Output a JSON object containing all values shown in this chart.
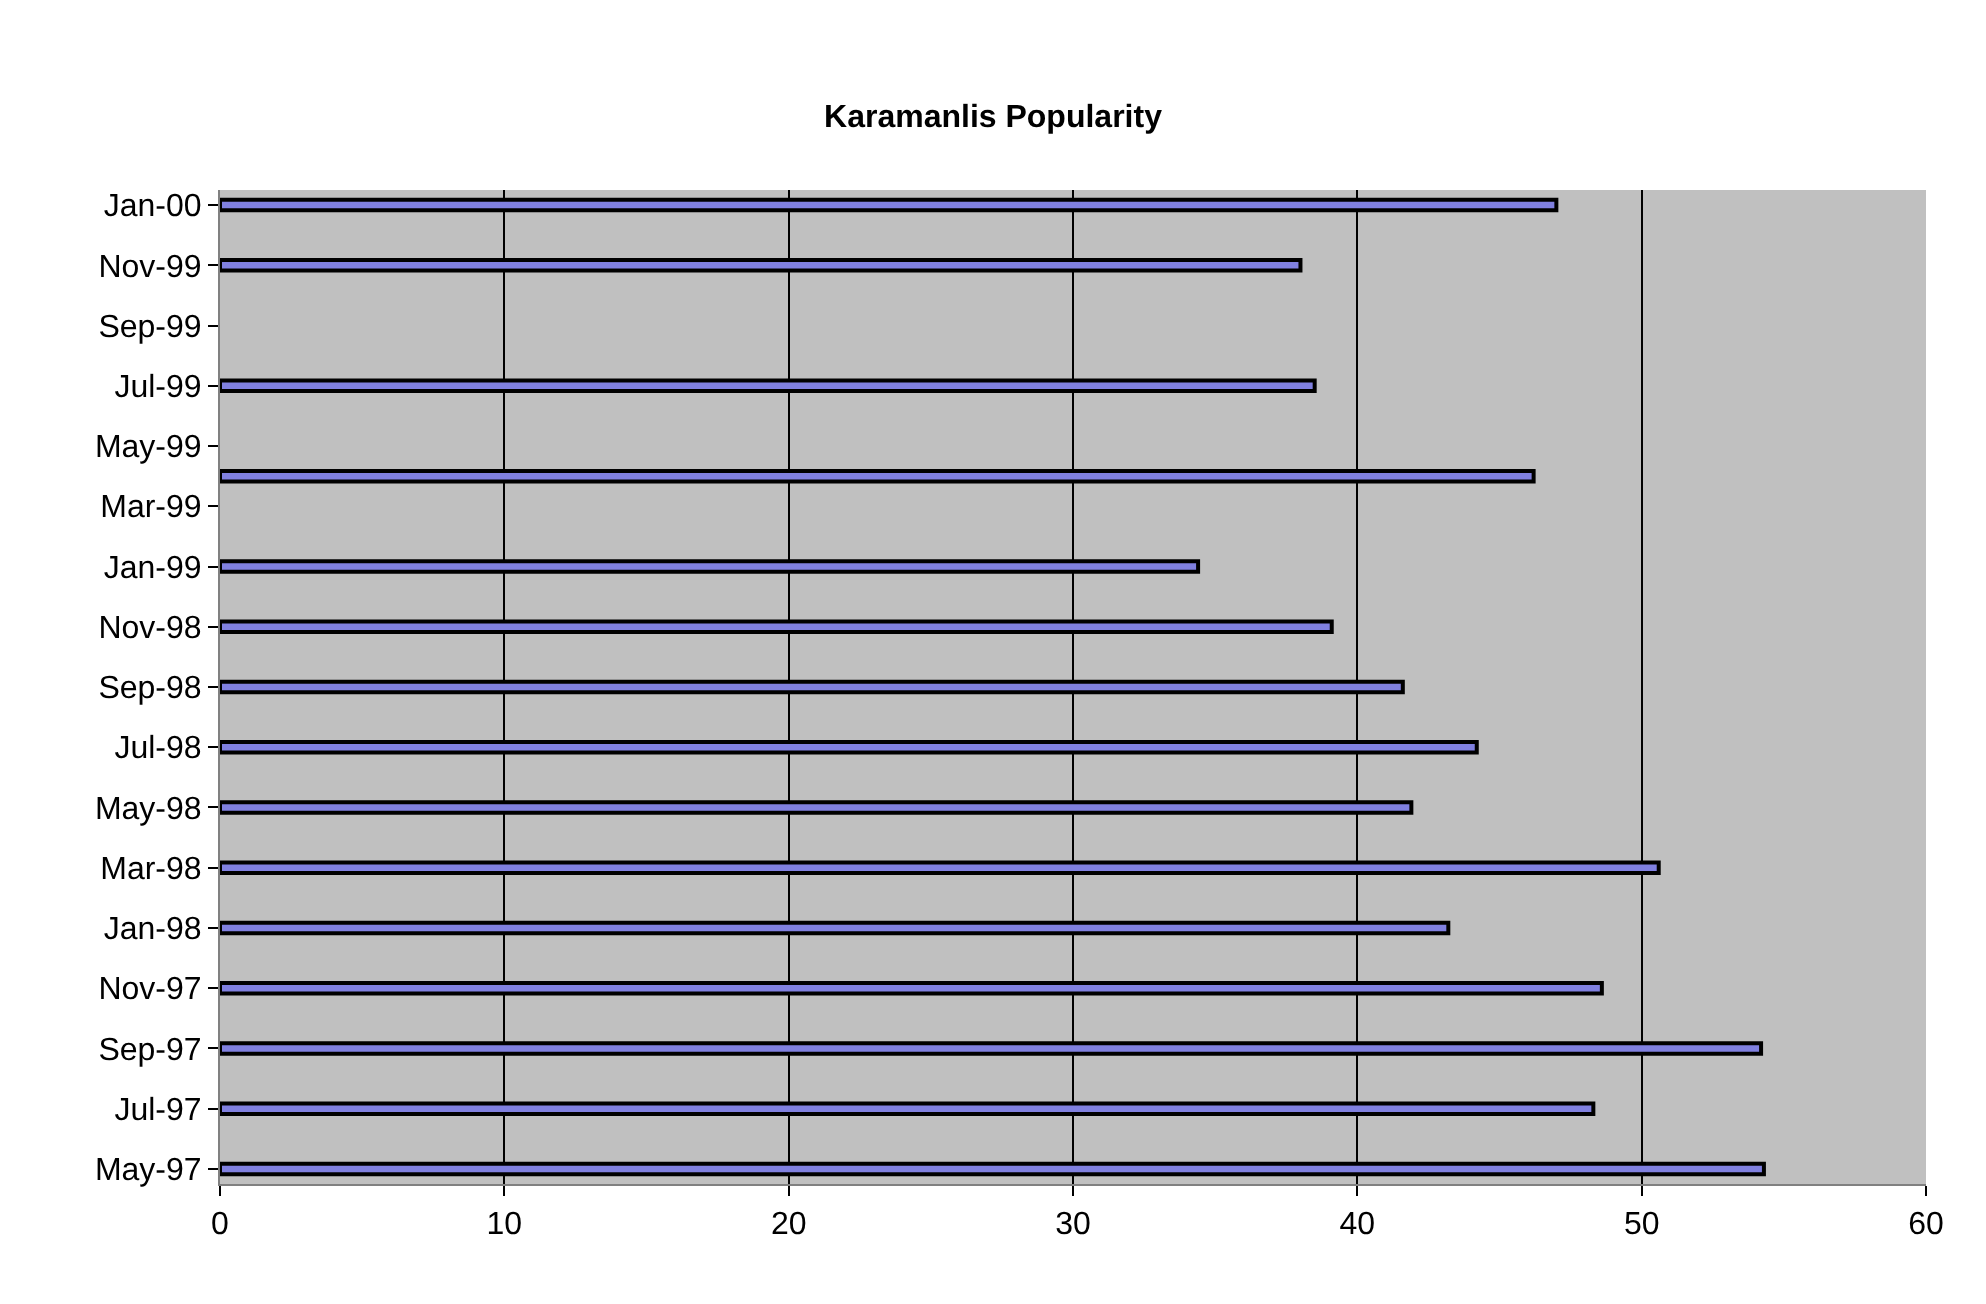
{
  "chart_data": {
    "type": "bar",
    "title": "Karamanlis Popularity",
    "orientation": "horizontal",
    "categories": [
      "Jan-00",
      null,
      "Nov-99",
      null,
      "Sep-99",
      null,
      "Jul-99",
      null,
      "May-99",
      null,
      "Mar-99",
      null,
      "Jan-99",
      null,
      "Nov-98",
      null,
      "Sep-98",
      null,
      "Jul-98",
      null,
      "May-98",
      null,
      "Mar-98",
      null,
      "Jan-98",
      null,
      "Nov-97",
      null,
      "Sep-97",
      null,
      "Jul-97",
      null,
      "May-97"
    ],
    "values": [
      47.0,
      null,
      38.0,
      null,
      null,
      null,
      38.5,
      null,
      null,
      46.2,
      null,
      null,
      34.4,
      null,
      39.1,
      null,
      41.6,
      null,
      44.2,
      null,
      41.9,
      null,
      50.6,
      null,
      43.2,
      null,
      48.6,
      null,
      54.2,
      null,
      48.3,
      null,
      54.3
    ],
    "color": "#8080e0",
    "xlim": [
      0,
      60
    ],
    "xticks": [
      0,
      10,
      20,
      30,
      40,
      50,
      60
    ],
    "grid": "x"
  }
}
